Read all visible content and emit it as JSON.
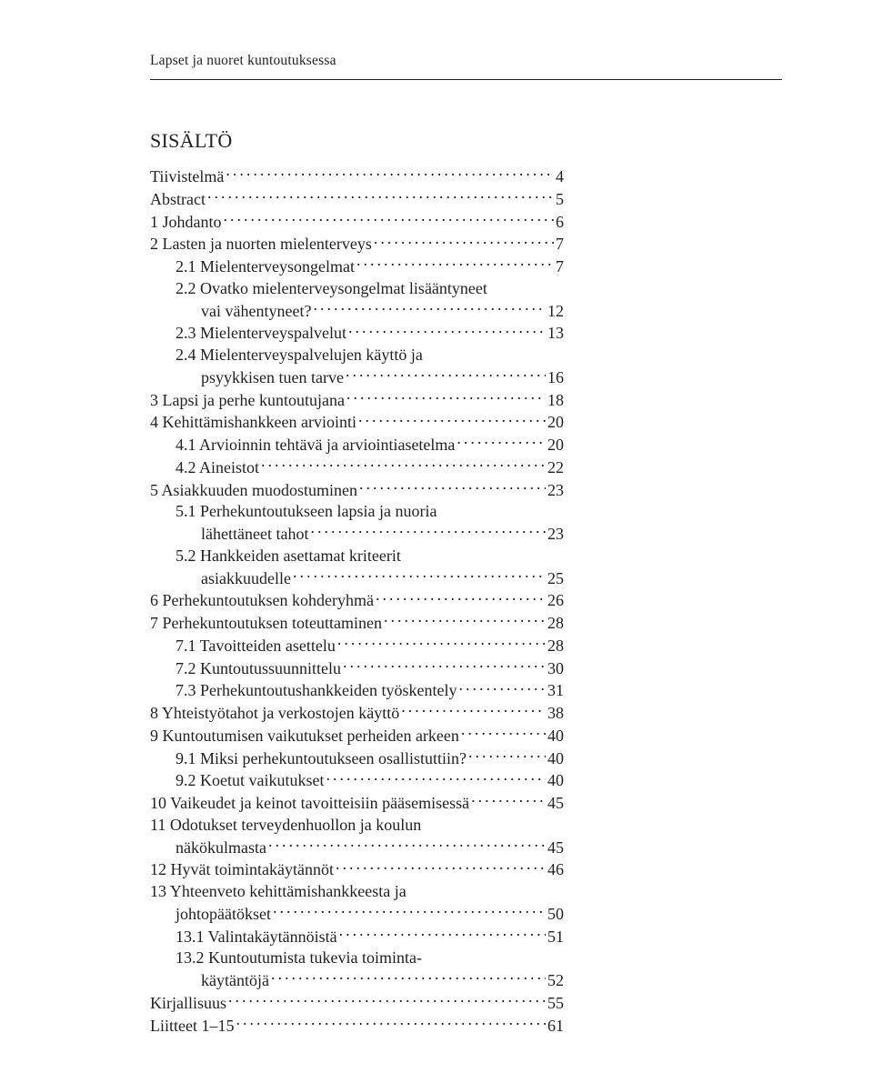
{
  "runningHead": "Lapset ja nuoret kuntoutuksessa",
  "heading": "SISÄLTÖ",
  "toc": [
    {
      "label": "Tiivistelmä",
      "page": "4",
      "indent": 0
    },
    {
      "label": "Abstract",
      "page": "5",
      "indent": 0
    },
    {
      "label": "1   Johdanto",
      "page": "6",
      "indent": 0
    },
    {
      "label": "2   Lasten ja nuorten mielenterveys",
      "page": "7",
      "indent": 0
    },
    {
      "label": "2.1 Mielenterveysongelmat",
      "page": "7",
      "indent": 1
    },
    {
      "label": "2.2 Ovatko mielenterveysongelmat lisääntyneet",
      "indent": 1,
      "cont": true
    },
    {
      "label": "vai vähentyneet?",
      "page": "12",
      "indent": 1,
      "contLine": 2
    },
    {
      "label": "2.3 Mielenterveyspalvelut",
      "page": "13",
      "indent": 1
    },
    {
      "label": "2.4 Mielenterveyspalvelujen käyttö ja",
      "indent": 1,
      "cont": true
    },
    {
      "label": "psyykkisen tuen tarve",
      "page": "16",
      "indent": 1,
      "contLine": 2
    },
    {
      "label": "3   Lapsi ja perhe kuntoutujana",
      "page": "18",
      "indent": 0
    },
    {
      "label": "4   Kehittämishankkeen arviointi",
      "page": "20",
      "indent": 0
    },
    {
      "label": "4.1 Arvioinnin tehtävä ja arviointiasetelma",
      "page": "20",
      "indent": 1
    },
    {
      "label": "4.2 Aineistot",
      "page": "22",
      "indent": 1
    },
    {
      "label": "5   Asiakkuuden muodostuminen",
      "page": "23",
      "indent": 0
    },
    {
      "label": "5.1 Perhekuntoutukseen lapsia ja nuoria",
      "indent": 1,
      "cont": true
    },
    {
      "label": "lähettäneet tahot",
      "page": "23",
      "indent": 1,
      "contLine": 2
    },
    {
      "label": "5.2 Hankkeiden asettamat kriteerit",
      "indent": 1,
      "cont": true
    },
    {
      "label": "asiakkuudelle",
      "page": "25",
      "indent": 1,
      "contLine": 2
    },
    {
      "label": "6   Perhekuntoutuksen kohderyhmä",
      "page": "26",
      "indent": 0
    },
    {
      "label": "7   Perhekuntoutuksen toteuttaminen",
      "page": "28",
      "indent": 0
    },
    {
      "label": "7.1 Tavoitteiden asettelu",
      "page": "28",
      "indent": 1
    },
    {
      "label": "7.2 Kuntoutussuunnittelu",
      "page": "30",
      "indent": 1
    },
    {
      "label": "7.3 Perhekuntoutushankkeiden työskentely",
      "page": "31",
      "indent": 1
    },
    {
      "label": "8   Yhteistyötahot ja verkostojen käyttö",
      "page": "38",
      "indent": 0
    },
    {
      "label": "9   Kuntoutumisen vaikutukset perheiden arkeen",
      "page": "40",
      "indent": 0
    },
    {
      "label": "9.1 Miksi perhekuntoutukseen osallistuttiin?",
      "page": "40",
      "indent": 1
    },
    {
      "label": "9.2 Koetut vaikutukset",
      "page": "40",
      "indent": 1
    },
    {
      "label": "10 Vaikeudet ja keinot tavoitteisiin pääsemisessä",
      "page": "45",
      "indent": 0
    },
    {
      "label": "11 Odotukset terveydenhuollon ja koulun",
      "indent": 0,
      "cont": true
    },
    {
      "label": "näkökulmasta",
      "page": "45",
      "indent": 0,
      "contLine": 1
    },
    {
      "label": "12 Hyvät toimintakäytännöt",
      "page": "46",
      "indent": 0
    },
    {
      "label": "13 Yhteenveto kehittämishankkeesta ja",
      "indent": 0,
      "cont": true
    },
    {
      "label": "johtopäätökset",
      "page": "50",
      "indent": 0,
      "contLine": 1
    },
    {
      "label": "13.1 Valintakäytännöistä",
      "page": "51",
      "indent": 1
    },
    {
      "label": "13.2 Kuntoutumista tukevia toiminta-",
      "indent": 1,
      "cont": true
    },
    {
      "label": "käytäntöjä",
      "page": "52",
      "indent": 1,
      "contLine": 2
    },
    {
      "label": "Kirjallisuus",
      "page": "55",
      "indent": 0
    },
    {
      "label": "Liitteet 1–15",
      "page": "61",
      "indent": 0
    }
  ]
}
